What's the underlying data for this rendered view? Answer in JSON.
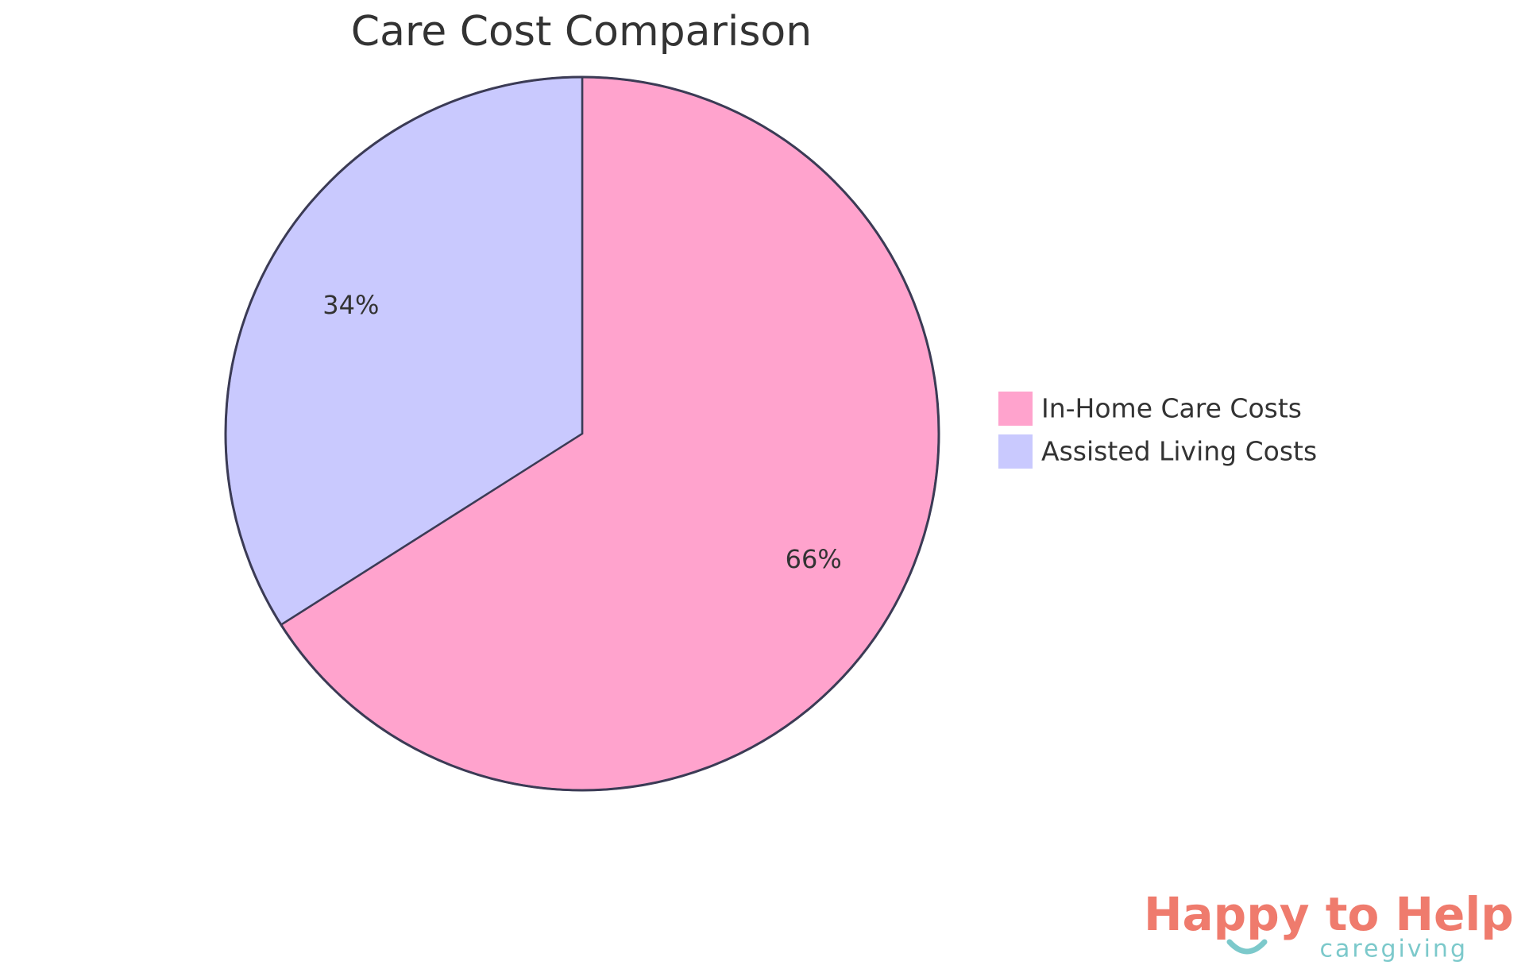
{
  "chart_data": {
    "type": "pie",
    "title": "Care Cost Comparison",
    "categories": [
      "In-Home Care Costs",
      "Assisted Living Costs"
    ],
    "values": [
      66,
      34
    ],
    "value_labels": [
      "66%",
      "34%"
    ],
    "colors": [
      "#ffa3cd",
      "#c9c9fe"
    ],
    "legend": "right"
  },
  "logo": {
    "name": "Happy to Help",
    "tagline": "caregiving"
  }
}
